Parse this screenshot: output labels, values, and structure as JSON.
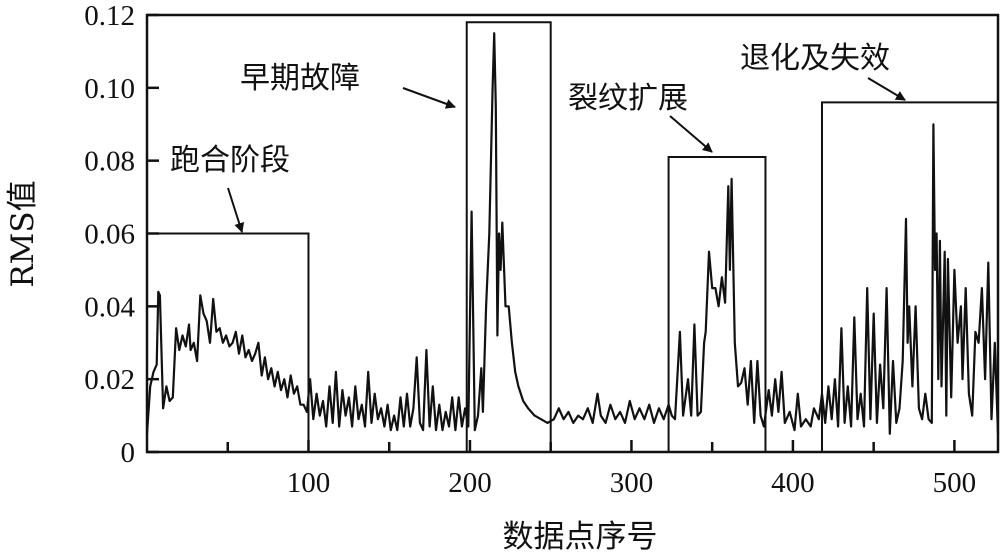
{
  "chart_data": {
    "type": "line",
    "title": "",
    "xlabel": "数据点序号",
    "ylabel": "RMS值",
    "xlim": [
      0,
      527
    ],
    "ylim": [
      0,
      0.12
    ],
    "xticks": [
      100,
      200,
      300,
      400,
      500
    ],
    "xtick_labels": [
      "100",
      "200",
      "300",
      "400",
      "500"
    ],
    "xminor_ticks": [
      50,
      150,
      250,
      350,
      450
    ],
    "yticks": [
      0,
      0.02,
      0.04,
      0.06,
      0.08,
      0.1,
      0.12
    ],
    "ytick_labels": [
      "0",
      "0.02",
      "0.04",
      "0.06",
      "0.08",
      "0.10",
      "0.12"
    ],
    "grid": false,
    "line_color": "#111111",
    "regions": [
      {
        "label": "跑合阶段",
        "x_start": 0,
        "x_end": 100,
        "top": 0.06
      },
      {
        "label": "早期故障",
        "x_start": 198,
        "x_end": 250,
        "top": 0.118
      },
      {
        "label": "裂纹扩展",
        "x_start": 323,
        "x_end": 383,
        "top": 0.081
      },
      {
        "label": "退化及失效",
        "x_start": 418,
        "x_end": 527,
        "top": 0.096
      }
    ],
    "points": [
      [
        0,
        0.005
      ],
      [
        2,
        0.018
      ],
      [
        4,
        0.022
      ],
      [
        6,
        0.024
      ],
      [
        7,
        0.044
      ],
      [
        8,
        0.043
      ],
      [
        10,
        0.012
      ],
      [
        12,
        0.018
      ],
      [
        14,
        0.014
      ],
      [
        16,
        0.015
      ],
      [
        18,
        0.034
      ],
      [
        20,
        0.028
      ],
      [
        22,
        0.032
      ],
      [
        24,
        0.029
      ],
      [
        26,
        0.035
      ],
      [
        27,
        0.028
      ],
      [
        29,
        0.03
      ],
      [
        31,
        0.025
      ],
      [
        33,
        0.043
      ],
      [
        35,
        0.038
      ],
      [
        37,
        0.036
      ],
      [
        39,
        0.03
      ],
      [
        41,
        0.042
      ],
      [
        43,
        0.033
      ],
      [
        45,
        0.034
      ],
      [
        47,
        0.03
      ],
      [
        49,
        0.032
      ],
      [
        51,
        0.029
      ],
      [
        53,
        0.03
      ],
      [
        55,
        0.033
      ],
      [
        57,
        0.027
      ],
      [
        59,
        0.032
      ],
      [
        61,
        0.026
      ],
      [
        63,
        0.028
      ],
      [
        65,
        0.025
      ],
      [
        67,
        0.027
      ],
      [
        69,
        0.03
      ],
      [
        71,
        0.021
      ],
      [
        73,
        0.026
      ],
      [
        75,
        0.02
      ],
      [
        77,
        0.023
      ],
      [
        79,
        0.018
      ],
      [
        81,
        0.022
      ],
      [
        83,
        0.017
      ],
      [
        85,
        0.02
      ],
      [
        87,
        0.015
      ],
      [
        89,
        0.021
      ],
      [
        91,
        0.016
      ],
      [
        93,
        0.018
      ],
      [
        95,
        0.013
      ],
      [
        97,
        0.013
      ],
      [
        99,
        0.011
      ],
      [
        101,
        0.02
      ],
      [
        103,
        0.009
      ],
      [
        105,
        0.016
      ],
      [
        107,
        0.01
      ],
      [
        109,
        0.014
      ],
      [
        111,
        0.007
      ],
      [
        113,
        0.018
      ],
      [
        115,
        0.008
      ],
      [
        117,
        0.022
      ],
      [
        119,
        0.007
      ],
      [
        121,
        0.017
      ],
      [
        123,
        0.01
      ],
      [
        125,
        0.015
      ],
      [
        127,
        0.007
      ],
      [
        129,
        0.018
      ],
      [
        131,
        0.009
      ],
      [
        133,
        0.013
      ],
      [
        135,
        0.007
      ],
      [
        137,
        0.022
      ],
      [
        139,
        0.008
      ],
      [
        141,
        0.016
      ],
      [
        143,
        0.009
      ],
      [
        145,
        0.012
      ],
      [
        147,
        0.007
      ],
      [
        149,
        0.013
      ],
      [
        151,
        0.006
      ],
      [
        153,
        0.01
      ],
      [
        155,
        0.006
      ],
      [
        157,
        0.015
      ],
      [
        159,
        0.007
      ],
      [
        161,
        0.016
      ],
      [
        163,
        0.007
      ],
      [
        165,
        0.012
      ],
      [
        167,
        0.026
      ],
      [
        169,
        0.008
      ],
      [
        171,
        0.006
      ],
      [
        173,
        0.028
      ],
      [
        175,
        0.007
      ],
      [
        177,
        0.018
      ],
      [
        179,
        0.006
      ],
      [
        181,
        0.013
      ],
      [
        183,
        0.006
      ],
      [
        185,
        0.011
      ],
      [
        187,
        0.007
      ],
      [
        189,
        0.015
      ],
      [
        191,
        0.006
      ],
      [
        193,
        0.015
      ],
      [
        195,
        0.007
      ],
      [
        197,
        0.012
      ],
      [
        199,
        0.007
      ],
      [
        201,
        0.066
      ],
      [
        203,
        0.006
      ],
      [
        205,
        0.01
      ],
      [
        207,
        0.023
      ],
      [
        208,
        0.011
      ],
      [
        210,
        0.04
      ],
      [
        212,
        0.06
      ],
      [
        214,
        0.1
      ],
      [
        215,
        0.115
      ],
      [
        216,
        0.095
      ],
      [
        217,
        0.032
      ],
      [
        218,
        0.06
      ],
      [
        219,
        0.05
      ],
      [
        220,
        0.063
      ],
      [
        222,
        0.04
      ],
      [
        224,
        0.04
      ],
      [
        226,
        0.03
      ],
      [
        228,
        0.022
      ],
      [
        230,
        0.018
      ],
      [
        233,
        0.014
      ],
      [
        236,
        0.012
      ],
      [
        240,
        0.01
      ],
      [
        244,
        0.009
      ],
      [
        248,
        0.008
      ],
      [
        252,
        0.009
      ],
      [
        255,
        0.012
      ],
      [
        258,
        0.009
      ],
      [
        261,
        0.011
      ],
      [
        264,
        0.008
      ],
      [
        267,
        0.01
      ],
      [
        270,
        0.009
      ],
      [
        273,
        0.012
      ],
      [
        276,
        0.008
      ],
      [
        279,
        0.016
      ],
      [
        281,
        0.01
      ],
      [
        284,
        0.008
      ],
      [
        287,
        0.013
      ],
      [
        290,
        0.009
      ],
      [
        293,
        0.011
      ],
      [
        296,
        0.008
      ],
      [
        299,
        0.014
      ],
      [
        302,
        0.009
      ],
      [
        305,
        0.012
      ],
      [
        308,
        0.009
      ],
      [
        311,
        0.013
      ],
      [
        314,
        0.008
      ],
      [
        317,
        0.012
      ],
      [
        320,
        0.009
      ],
      [
        323,
        0.013
      ],
      [
        325,
        0.01
      ],
      [
        327,
        0.009
      ],
      [
        330,
        0.033
      ],
      [
        332,
        0.01
      ],
      [
        335,
        0.02
      ],
      [
        337,
        0.01
      ],
      [
        339,
        0.035
      ],
      [
        341,
        0.01
      ],
      [
        343,
        0.011
      ],
      [
        345,
        0.03
      ],
      [
        346,
        0.033
      ],
      [
        348,
        0.055
      ],
      [
        350,
        0.045
      ],
      [
        352,
        0.045
      ],
      [
        354,
        0.04
      ],
      [
        356,
        0.048
      ],
      [
        358,
        0.041
      ],
      [
        360,
        0.073
      ],
      [
        361,
        0.05
      ],
      [
        362,
        0.075
      ],
      [
        364,
        0.03
      ],
      [
        366,
        0.018
      ],
      [
        368,
        0.019
      ],
      [
        370,
        0.023
      ],
      [
        372,
        0.013
      ],
      [
        374,
        0.025
      ],
      [
        376,
        0.008
      ],
      [
        378,
        0.025
      ],
      [
        380,
        0.01
      ],
      [
        382,
        0.007
      ],
      [
        385,
        0.017
      ],
      [
        387,
        0.01
      ],
      [
        389,
        0.02
      ],
      [
        391,
        0.011
      ],
      [
        393,
        0.022
      ],
      [
        395,
        0.008
      ],
      [
        398,
        0.011
      ],
      [
        401,
        0.006
      ],
      [
        403,
        0.016
      ],
      [
        405,
        0.007
      ],
      [
        408,
        0.009
      ],
      [
        411,
        0.007
      ],
      [
        413,
        0.012
      ],
      [
        416,
        0.009
      ],
      [
        418,
        0.016
      ],
      [
        420,
        0.008
      ],
      [
        422,
        0.018
      ],
      [
        424,
        0.009
      ],
      [
        426,
        0.02
      ],
      [
        428,
        0.007
      ],
      [
        430,
        0.034
      ],
      [
        432,
        0.008
      ],
      [
        434,
        0.018
      ],
      [
        436,
        0.007
      ],
      [
        438,
        0.037
      ],
      [
        440,
        0.009
      ],
      [
        442,
        0.016
      ],
      [
        444,
        0.007
      ],
      [
        446,
        0.045
      ],
      [
        448,
        0.009
      ],
      [
        450,
        0.038
      ],
      [
        452,
        0.008
      ],
      [
        454,
        0.024
      ],
      [
        456,
        0.012
      ],
      [
        458,
        0.045
      ],
      [
        460,
        0.005
      ],
      [
        462,
        0.025
      ],
      [
        464,
        0.008
      ],
      [
        466,
        0.012
      ],
      [
        468,
        0.025
      ],
      [
        470,
        0.064
      ],
      [
        471,
        0.03
      ],
      [
        472,
        0.04
      ],
      [
        474,
        0.018
      ],
      [
        476,
        0.04
      ],
      [
        478,
        0.012
      ],
      [
        480,
        0.009
      ],
      [
        482,
        0.016
      ],
      [
        484,
        0.009
      ],
      [
        486,
        0.008
      ],
      [
        487,
        0.09
      ],
      [
        488,
        0.05
      ],
      [
        489,
        0.06
      ],
      [
        490,
        0.02
      ],
      [
        491,
        0.058
      ],
      [
        492,
        0.018
      ],
      [
        494,
        0.055
      ],
      [
        495,
        0.01
      ],
      [
        496,
        0.053
      ],
      [
        498,
        0.015
      ],
      [
        500,
        0.05
      ],
      [
        502,
        0.03
      ],
      [
        504,
        0.04
      ],
      [
        505,
        0.02
      ],
      [
        507,
        0.045
      ],
      [
        509,
        0.016
      ],
      [
        511,
        0.01
      ],
      [
        513,
        0.033
      ],
      [
        515,
        0.03
      ],
      [
        517,
        0.045
      ],
      [
        519,
        0.02
      ],
      [
        521,
        0.052
      ],
      [
        523,
        0.009
      ],
      [
        525,
        0.03
      ],
      [
        527,
        0.005
      ]
    ]
  }
}
